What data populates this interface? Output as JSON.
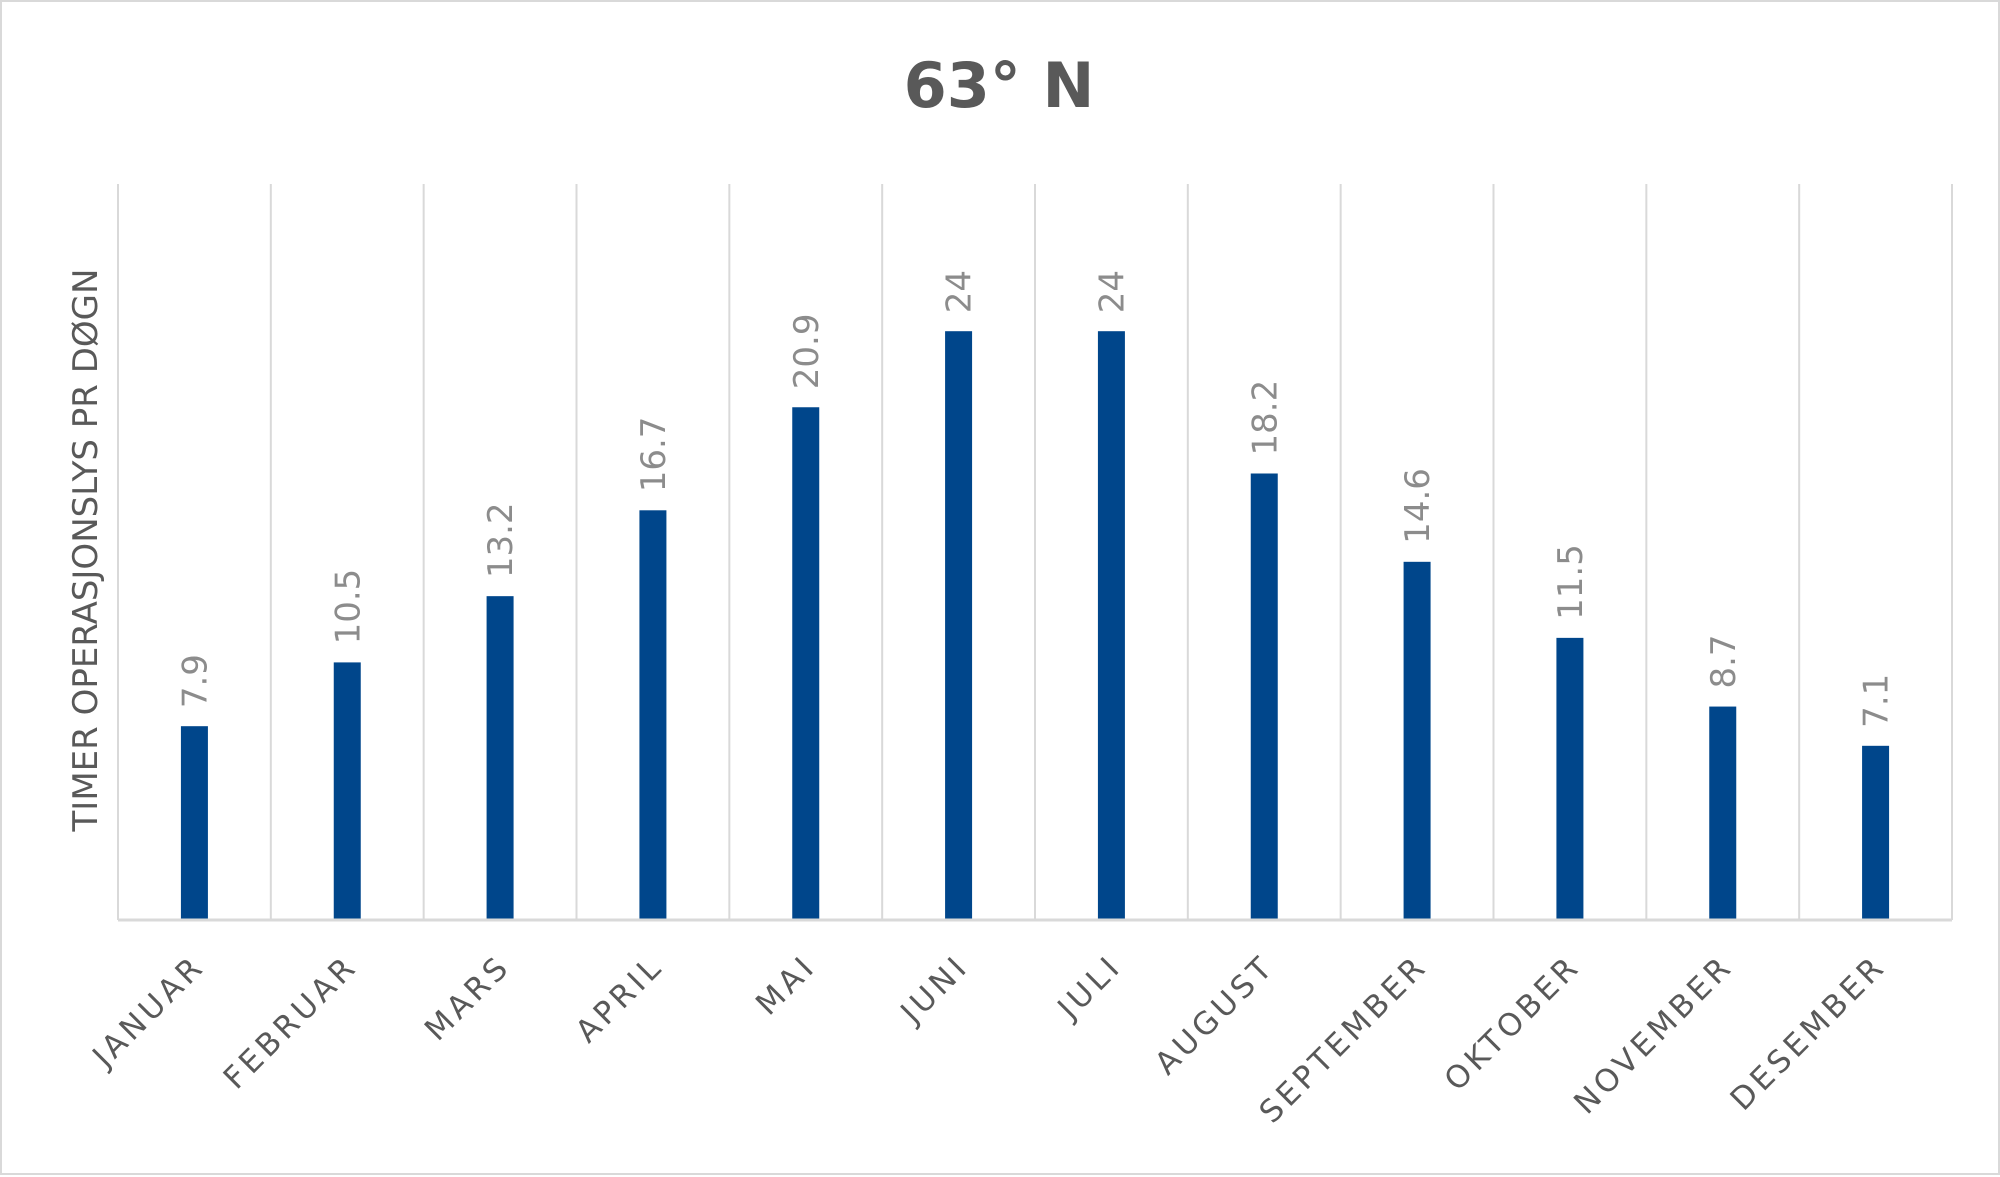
{
  "chart_data": {
    "type": "bar",
    "title": "63° N",
    "xlabel": "",
    "ylabel": "TIMER OPERASJONSLYS PR DØGN",
    "categories": [
      "JANUAR",
      "FEBRUAR",
      "MARS",
      "APRIL",
      "MAI",
      "JUNI",
      "JULI",
      "AUGUST",
      "SEPTEMBER",
      "OKTOBER",
      "NOVEMBER",
      "DESEMBER"
    ],
    "values": [
      7.9,
      10.5,
      13.2,
      16.7,
      20.9,
      24,
      24,
      18.2,
      14.6,
      11.5,
      8.7,
      7.1
    ],
    "data_labels": [
      "7.9",
      "10.5",
      "13.2",
      "16.7",
      "20.9",
      "24",
      "24",
      "18.2",
      "14.6",
      "11.5",
      "8.7",
      "7.1"
    ],
    "ylim": [
      0,
      30
    ],
    "grid": "vertical",
    "legend": "none",
    "bar_color": "#00468b"
  }
}
